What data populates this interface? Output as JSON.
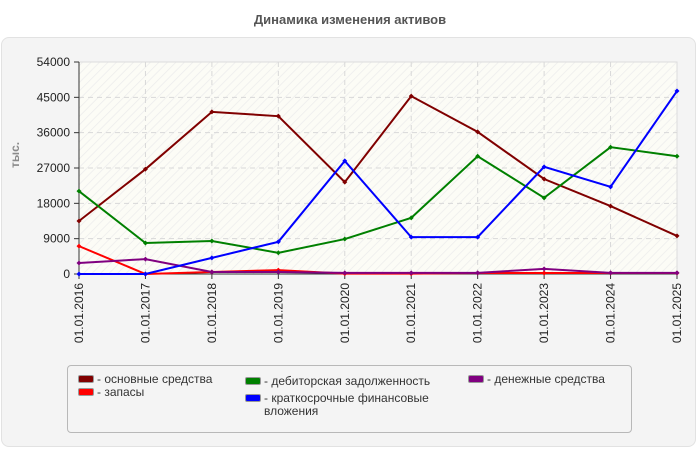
{
  "title": "Динамика изменения активов",
  "chart_data": {
    "type": "line",
    "title": "Динамика изменения активов",
    "xlabel": "",
    "ylabel": "тыс.",
    "ylim": [
      0,
      54000
    ],
    "yticks": [
      0,
      9000,
      18000,
      27000,
      36000,
      45000,
      54000
    ],
    "grid": true,
    "legend_position": "bottom",
    "categories": [
      "01.01.2016",
      "01.01.2017",
      "01.01.2018",
      "01.01.2019",
      "01.01.2020",
      "01.01.2021",
      "01.01.2022",
      "01.01.2023",
      "01.01.2024",
      "01.01.2025"
    ],
    "series": [
      {
        "name": "основные средства",
        "color": "#800000",
        "values": [
          13500,
          26700,
          41300,
          40200,
          23400,
          45300,
          36200,
          24200,
          17300,
          9700
        ]
      },
      {
        "name": "запасы",
        "color": "#ff0000",
        "values": [
          7100,
          0,
          500,
          1000,
          100,
          100,
          250,
          250,
          250,
          250
        ]
      },
      {
        "name": "дебиторская задолженность",
        "color": "#008000",
        "values": [
          21100,
          7900,
          8400,
          5400,
          8900,
          14300,
          30000,
          19400,
          32300,
          30000
        ]
      },
      {
        "name": "краткосрочные финансовые вложения",
        "color": "#0000ff",
        "values": [
          0,
          0,
          4100,
          8200,
          28800,
          9400,
          9400,
          27300,
          22200,
          46600
        ]
      },
      {
        "name": "денежные средства",
        "color": "#800080",
        "values": [
          2800,
          3800,
          500,
          500,
          300,
          300,
          300,
          1300,
          300,
          300
        ]
      }
    ]
  },
  "legend": {
    "items": [
      {
        "label": "- основные средства",
        "color": "#800000"
      },
      {
        "label": "- запасы",
        "color": "#ff0000"
      },
      {
        "label": "- дебиторская задолженность",
        "color": "#008000"
      },
      {
        "label": "- краткосрочные финансовые вложения",
        "color": "#0000ff"
      },
      {
        "label": "- денежные средства",
        "color": "#800080"
      }
    ]
  }
}
